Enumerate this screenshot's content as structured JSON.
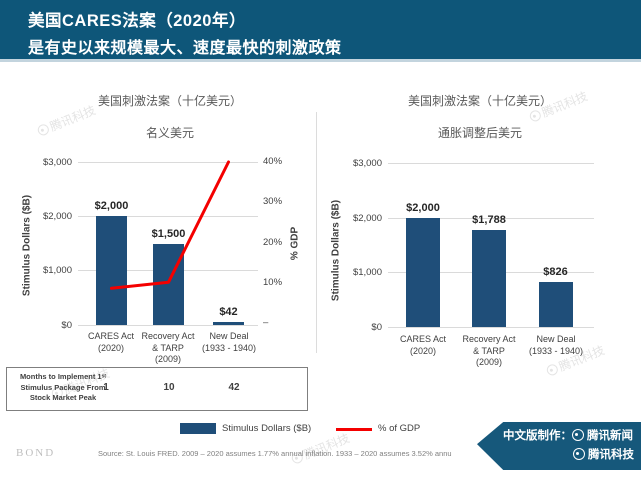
{
  "header": {
    "line1": "美国CARES法案（2020年）",
    "line2": "是有史以来规模最大、速度最快的刺激政策"
  },
  "chart_data": [
    {
      "type": "bar+line",
      "title": "美国刺激法案（十亿美元）",
      "subtitle": "名义美元",
      "categories": [
        "CARES Act (2020)",
        "Recovery Act & TARP (2009)",
        "New Deal (1933 - 1940)"
      ],
      "category_lines": [
        [
          "CARES Act",
          "(2020)"
        ],
        [
          "Recovery Act",
          "& TARP",
          "(2009)"
        ],
        [
          "New Deal",
          "(1933 - 1940)"
        ]
      ],
      "series": [
        {
          "name": "Stimulus Dollars ($B)",
          "type": "bar",
          "values": [
            2000,
            1500,
            42
          ],
          "labels": [
            "$2,000",
            "$1,500",
            "$42"
          ],
          "color": "#1f4e79"
        },
        {
          "name": "% of GDP",
          "type": "line",
          "values": [
            9,
            10.5,
            40
          ],
          "color": "#f40000"
        }
      ],
      "ylabel": "Stimulus Dollars ($B)",
      "y2label": "% GDP",
      "ylim": [
        0,
        3000
      ],
      "y2lim": [
        0,
        40
      ],
      "yticks": [
        "$3,000",
        "$2,000",
        "$1,000",
        "$0"
      ],
      "y2ticks": [
        "40%",
        "30%",
        "20%",
        "10%",
        "–"
      ],
      "grid": true,
      "legend_position": "bottom"
    },
    {
      "type": "bar",
      "title": "美国刺激法案（十亿美元）",
      "subtitle": "通胀调整后美元",
      "categories": [
        "CARES Act (2020)",
        "Recovery Act & TARP (2009)",
        "New Deal (1933 - 1940)"
      ],
      "category_lines": [
        [
          "CARES Act",
          "(2020)"
        ],
        [
          "Recovery Act",
          "& TARP",
          "(2009)"
        ],
        [
          "New Deal",
          "(1933 - 1940)"
        ]
      ],
      "values": [
        2000,
        1788,
        826
      ],
      "labels": [
        "$2,000",
        "$1,788",
        "$826"
      ],
      "ylabel": "Stimulus Dollars ($B)",
      "ylim": [
        0,
        3000
      ],
      "yticks": [
        "$3,000",
        "$2,000",
        "$1,000",
        "$0"
      ],
      "grid": true,
      "bar_color": "#1f4e79"
    }
  ],
  "table": {
    "row_header_lines": [
      "Months to Implement 1ˢᵗ",
      "Stimulus Package From",
      "Stock Market Peak"
    ],
    "values": [
      "1",
      "10",
      "42"
    ]
  },
  "footer": {
    "brand": "BOND",
    "source": "Source: St. Louis FRED. 2009 – 2020 assumes 1.77% annual inflation. 1933 – 2020 assumes 3.52% annu"
  },
  "ribbon": {
    "prefix": "中文版制作：",
    "line1": "腾讯新闻",
    "line2": "腾讯科技"
  },
  "watermark": {
    "text": "腾讯科技"
  },
  "colors": {
    "header_bg": "#0e5679",
    "bar": "#1f4e79",
    "gdp_line": "#f40000",
    "ribbon_bg": "#16587b"
  }
}
